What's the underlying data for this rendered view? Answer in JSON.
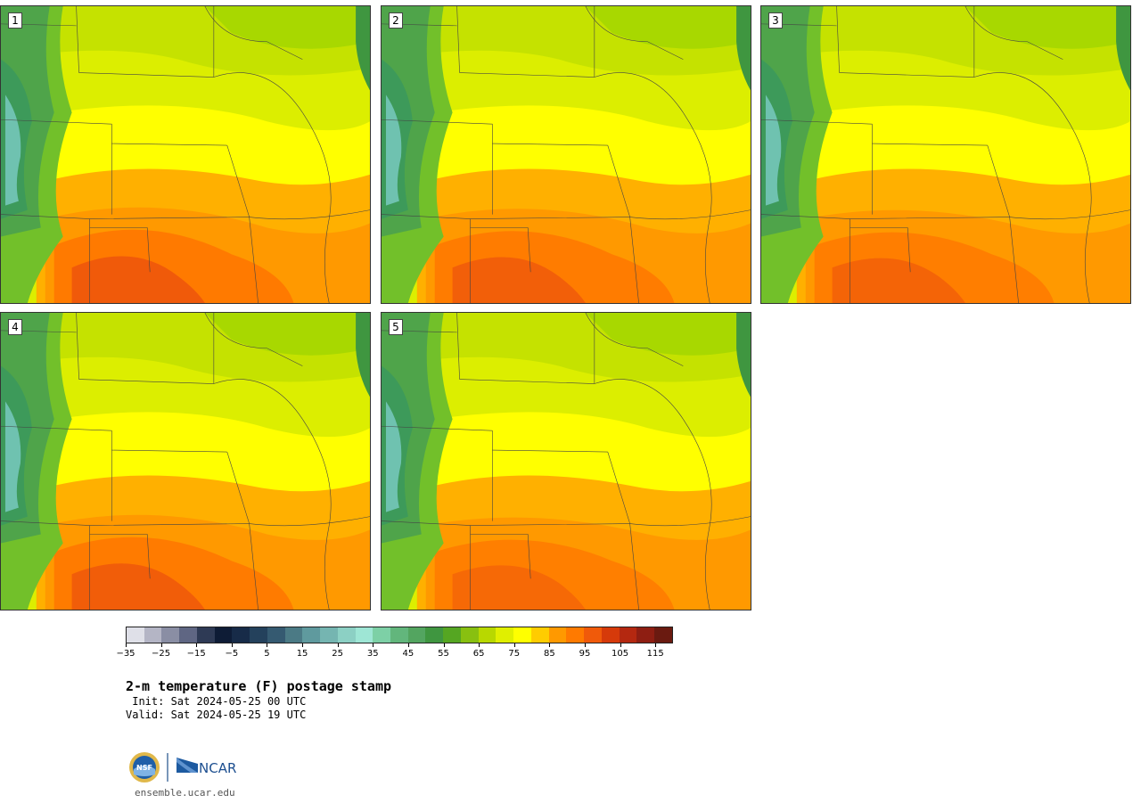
{
  "panels": [
    {
      "label": "1",
      "heat": 1.0
    },
    {
      "label": "2",
      "heat": 0.85
    },
    {
      "label": "3",
      "heat": 0.7
    },
    {
      "label": "4",
      "heat": 0.9
    },
    {
      "label": "5",
      "heat": 0.6
    }
  ],
  "colorbar": {
    "colors": [
      "#dfe0e8",
      "#b4b5c5",
      "#8a8ea4",
      "#5f6683",
      "#2e3a55",
      "#0e1c36",
      "#172b48",
      "#24415c",
      "#355a71",
      "#4b7a85",
      "#5f9a9e",
      "#75b5b1",
      "#8cd0c4",
      "#9ee6d5",
      "#7dd0a6",
      "#62b67c",
      "#53a560",
      "#3f9640",
      "#55a622",
      "#88c010",
      "#b8d800",
      "#e0ef00",
      "#ffff00",
      "#ffcc00",
      "#ff9900",
      "#ff7a00",
      "#f05a0a",
      "#d63a0a",
      "#b42810",
      "#8e1e12",
      "#6a1a10"
    ],
    "ticks": [
      "−35",
      "−25",
      "−15",
      "−5",
      "5",
      "15",
      "25",
      "35",
      "45",
      "55",
      "65",
      "75",
      "85",
      "95",
      "105",
      "115"
    ]
  },
  "title": "2-m temperature (F) postage stamp",
  "init_line": " Init: Sat 2024-05-25 00 UTC",
  "valid_line": "Valid: Sat 2024-05-25 19 UTC",
  "logo_text": "NCAR",
  "website": "ensemble.ucar.edu"
}
